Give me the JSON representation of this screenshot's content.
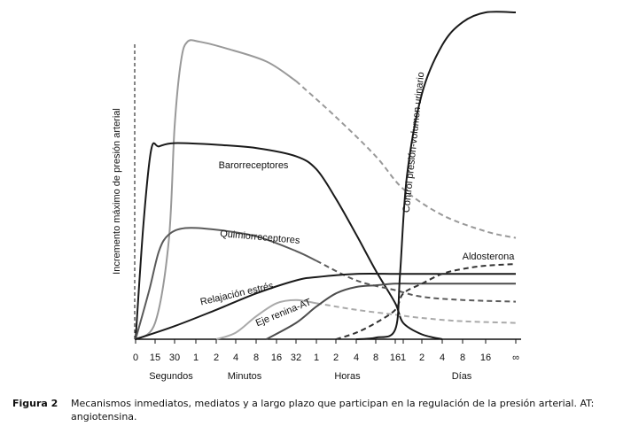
{
  "chart_data": {
    "type": "line",
    "title": "",
    "ylabel": "Incremento máximo de presión arterial",
    "x_ticks": [
      {
        "label": "0"
      },
      {
        "label": "15"
      },
      {
        "label": "30"
      },
      {
        "label": "1"
      },
      {
        "label": "2"
      },
      {
        "label": "4"
      },
      {
        "label": "8"
      },
      {
        "label": "16"
      },
      {
        "label": "32"
      },
      {
        "label": "1"
      },
      {
        "label": "2"
      },
      {
        "label": "4"
      },
      {
        "label": "8"
      },
      {
        "label": "16"
      },
      {
        "label": "1"
      },
      {
        "label": "2"
      },
      {
        "label": "4"
      },
      {
        "label": "8"
      },
      {
        "label": "16"
      },
      {
        "label": "∞"
      }
    ],
    "x_units": [
      {
        "label": "Segundos",
        "first_tick": 0,
        "last_tick": 2
      },
      {
        "label": "Minutos",
        "first_tick": 3,
        "last_tick": 8
      },
      {
        "label": "Horas",
        "first_tick": 9,
        "last_tick": 13
      },
      {
        "label": "Días",
        "first_tick": 14,
        "last_tick": 19
      }
    ],
    "y_range": [
      0,
      1
    ],
    "grid": false,
    "legend": "none",
    "series": [
      {
        "name": "",
        "color": "#999999",
        "points": [
          [
            0,
            0
          ],
          [
            1,
            0.05
          ],
          [
            1.7,
            0.3
          ],
          [
            2,
            0.65
          ],
          [
            2.3,
            0.85
          ],
          [
            2.6,
            0.91
          ],
          [
            3.2,
            0.91
          ],
          [
            4.5,
            0.89
          ],
          [
            6.5,
            0.85
          ],
          [
            8,
            0.79
          ]
        ],
        "dashed_points": [
          [
            8,
            0.79
          ],
          [
            10,
            0.68
          ],
          [
            12,
            0.56
          ],
          [
            14,
            0.46
          ],
          [
            16,
            0.38
          ],
          [
            18,
            0.33
          ],
          [
            19,
            0.31
          ]
        ]
      },
      {
        "name": "Barorreceptores",
        "color": "#1a1a1a",
        "points": [
          [
            0,
            0
          ],
          [
            0.4,
            0.35
          ],
          [
            0.8,
            0.58
          ],
          [
            1.2,
            0.59
          ],
          [
            2,
            0.6
          ],
          [
            4,
            0.595
          ],
          [
            6,
            0.585
          ],
          [
            8,
            0.56
          ],
          [
            9,
            0.52
          ],
          [
            10,
            0.43
          ],
          [
            11,
            0.32
          ],
          [
            12,
            0.21
          ],
          [
            13,
            0.11
          ],
          [
            14,
            0.05
          ],
          [
            15,
            0.015
          ],
          [
            16,
            0
          ]
        ]
      },
      {
        "name": "Quimiorreceptores",
        "color": "#5a5a5a",
        "points": [
          [
            0,
            0
          ],
          [
            0.7,
            0.15
          ],
          [
            1.2,
            0.27
          ],
          [
            1.7,
            0.32
          ],
          [
            2.5,
            0.34
          ],
          [
            4,
            0.335
          ],
          [
            6,
            0.315
          ],
          [
            8,
            0.27
          ],
          [
            9,
            0.24
          ]
        ],
        "dashed_points": [
          [
            9,
            0.24
          ],
          [
            11,
            0.18
          ],
          [
            13,
            0.15
          ],
          [
            15,
            0.13
          ],
          [
            17,
            0.12
          ],
          [
            19,
            0.115
          ]
        ]
      },
      {
        "name": "Relajación estrés",
        "color": "#1a1a1a",
        "points": [
          [
            0,
            0
          ],
          [
            2,
            0.04
          ],
          [
            4,
            0.09
          ],
          [
            6,
            0.14
          ],
          [
            8,
            0.18
          ],
          [
            9,
            0.19
          ],
          [
            11,
            0.2
          ],
          [
            13,
            0.2
          ],
          [
            15,
            0.2
          ],
          [
            17,
            0.2
          ],
          [
            19,
            0.2
          ]
        ]
      },
      {
        "name": "Eje renina-AT",
        "color": "#aaaaaa",
        "points": [
          [
            4,
            0
          ],
          [
            5,
            0.02
          ],
          [
            6,
            0.07
          ],
          [
            7,
            0.11
          ],
          [
            8,
            0.12
          ],
          [
            9,
            0.11
          ]
        ],
        "dashed_points": [
          [
            9,
            0.11
          ],
          [
            11,
            0.09
          ],
          [
            13,
            0.075
          ],
          [
            15,
            0.065
          ],
          [
            17,
            0.055
          ],
          [
            19,
            0.05
          ]
        ]
      },
      {
        "name": "",
        "color": "#4d4d4d",
        "points": [
          [
            6.5,
            0
          ],
          [
            8,
            0.05
          ],
          [
            9,
            0.1
          ],
          [
            10,
            0.14
          ],
          [
            11,
            0.16
          ],
          [
            12,
            0.165
          ],
          [
            13,
            0.17
          ],
          [
            15,
            0.17
          ],
          [
            17,
            0.17
          ],
          [
            19,
            0.17
          ]
        ]
      },
      {
        "name": "Aldosterona",
        "color": "#333333",
        "points": [],
        "dashed_points": [
          [
            10,
            0
          ],
          [
            11,
            0.02
          ],
          [
            12,
            0.05
          ],
          [
            13,
            0.09
          ],
          [
            14,
            0.14
          ],
          [
            15,
            0.17
          ],
          [
            16,
            0.2
          ],
          [
            17,
            0.215
          ],
          [
            18,
            0.225
          ],
          [
            19,
            0.23
          ]
        ]
      },
      {
        "name": "Control presión-volumen urinario",
        "color": "#1a1a1a",
        "points": [
          [
            11,
            0
          ],
          [
            12,
            0.005
          ],
          [
            13,
            0.03
          ],
          [
            13.6,
            0.2
          ],
          [
            14.2,
            0.5
          ],
          [
            15,
            0.75
          ],
          [
            16,
            0.9
          ],
          [
            17,
            0.97
          ],
          [
            18,
            1.0
          ],
          [
            19,
            1.0
          ]
        ]
      }
    ],
    "curve_labels": [
      {
        "text": "Barorreceptores",
        "series": 1
      },
      {
        "text": "Quimiorreceptores",
        "series": 2
      },
      {
        "text": "Relajación estrés",
        "series": 3
      },
      {
        "text": "Eje renina-AT",
        "series": 4
      },
      {
        "text": "Aldosterona",
        "series": 6
      },
      {
        "text": "Control presión-volumen urinario",
        "series": 7
      }
    ]
  },
  "caption": {
    "figure_label": "Figura 2",
    "text": "Mecanismos inmediatos, mediatos y a largo plazo que participan en la regulación de la presión arterial. AT: angiotensina."
  }
}
